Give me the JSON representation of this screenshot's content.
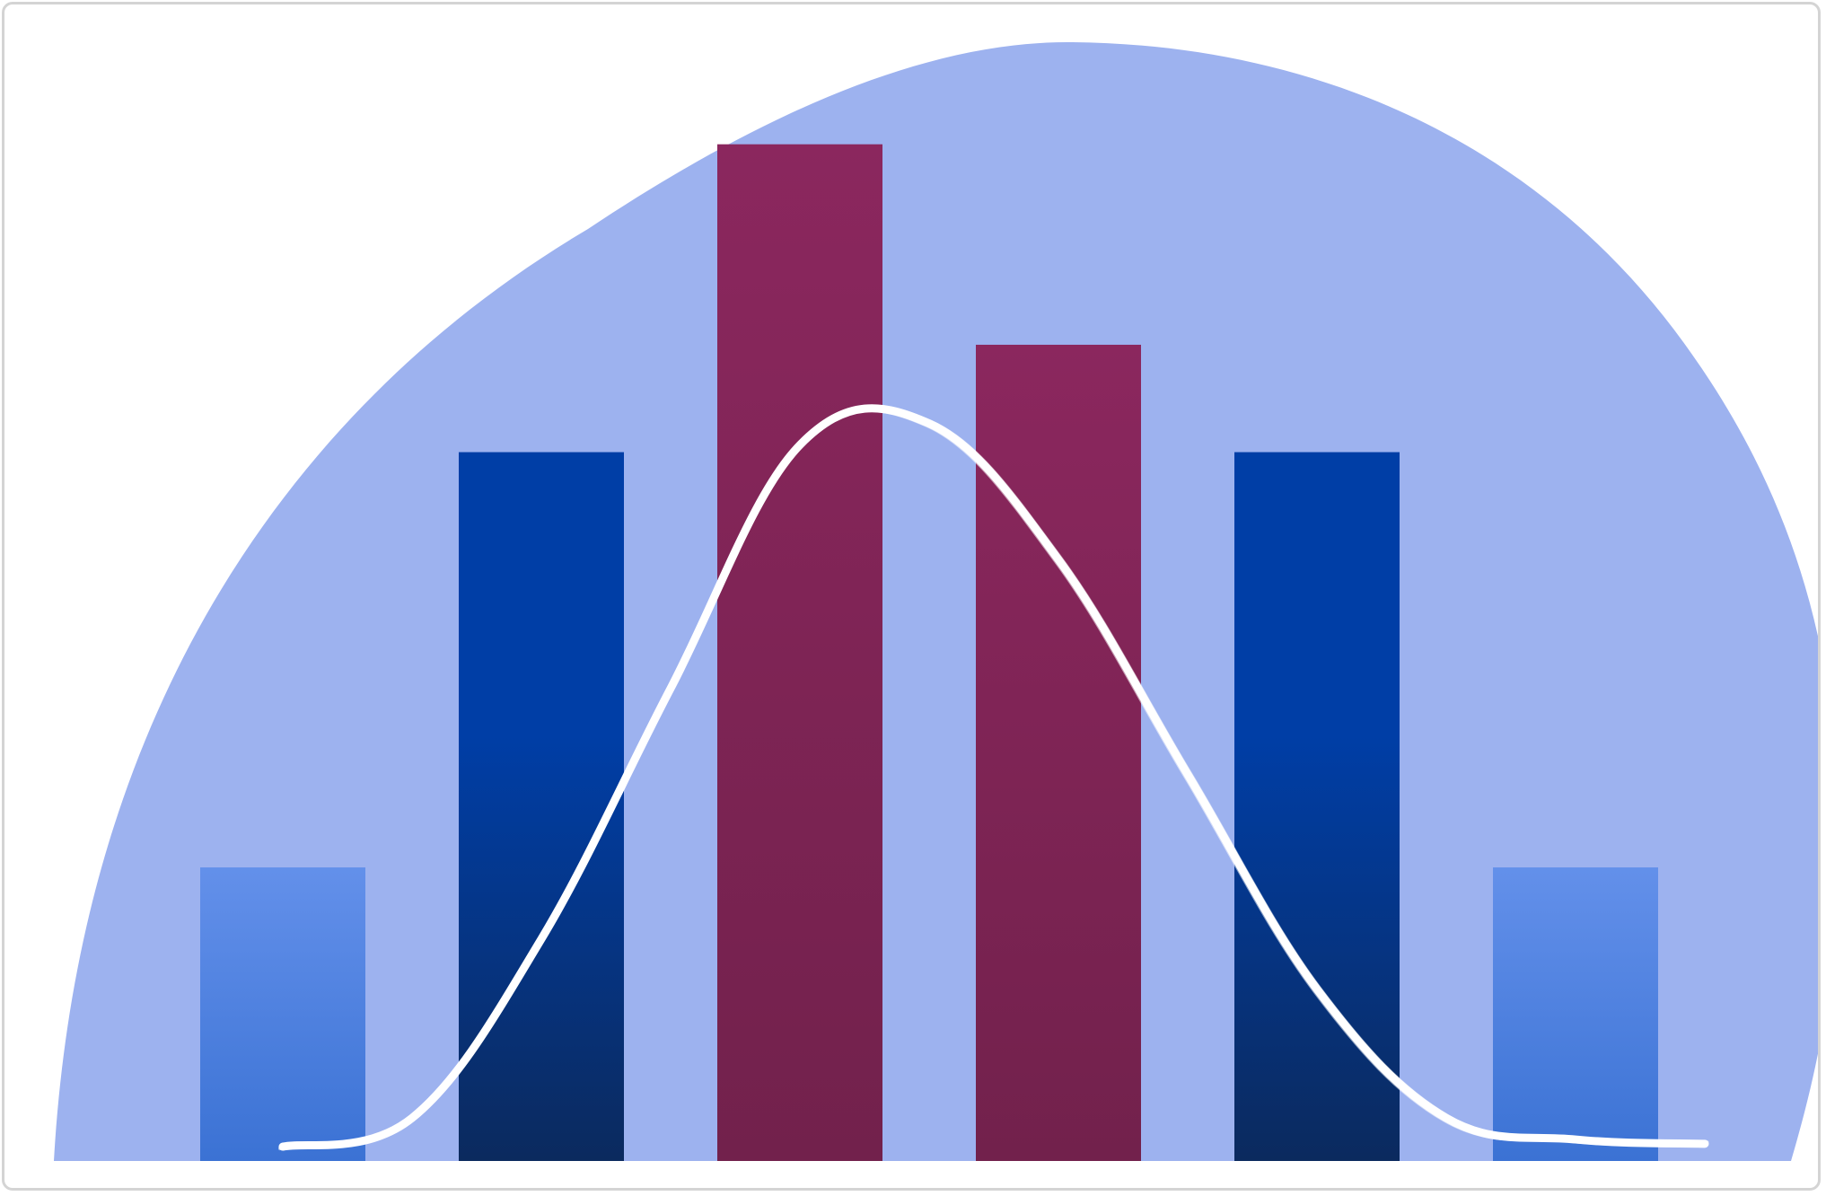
{
  "chart_data": {
    "type": "bar",
    "categories": [
      "",
      "",
      "",
      "",
      "",
      ""
    ],
    "values": [
      2.05,
      4.95,
      7.1,
      5.7,
      4.95,
      2.05
    ],
    "ylim": [
      0,
      7.7
    ],
    "grid": false,
    "legend": "none",
    "curve": {
      "type": "line",
      "style": "hand-drawn",
      "x": [
        0,
        0.5,
        1,
        1.5,
        2,
        2.5,
        3,
        3.5,
        4,
        4.5,
        5,
        5.5
      ],
      "y": [
        0.1,
        0.3,
        1.55,
        3.3,
        5.0,
        5.15,
        4.2,
        2.7,
        1.2,
        0.3,
        0.15,
        0.12
      ]
    },
    "colors": {
      "background_blob": "#9db2ef",
      "curve": "#ffffff",
      "bar_edge_light_top": "#6390ea",
      "bar_edge_light_bottom": "#3b72d4",
      "bar_mid_top": "#003ea6",
      "bar_mid_bottom": "#0b2a5e",
      "bar_center_top": "#8b275e",
      "bar_center_bottom": "#72214c"
    },
    "bar_styles": [
      "light",
      "mid",
      "center",
      "center",
      "mid",
      "light"
    ]
  }
}
